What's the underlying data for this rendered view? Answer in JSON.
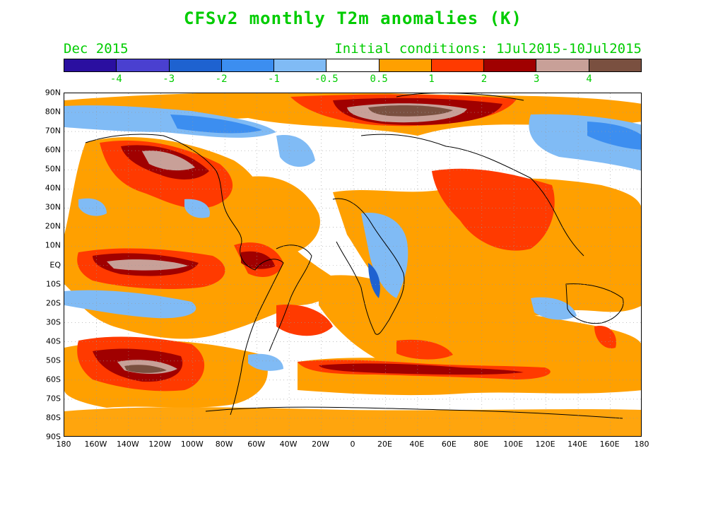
{
  "title": "CFSv2 monthly T2m anomalies (K)",
  "valid_month": "Dec 2015",
  "initial_conditions": "Initial conditions: 1Jul2015-10Jul2015",
  "colorbar": {
    "colors": [
      "#2a0fa0",
      "#4a40d0",
      "#1e62d0",
      "#3c8ef0",
      "#80bbf5",
      "#ffffff",
      "#ffa000",
      "#ff3a00",
      "#a00000",
      "#c8a098",
      "#7a5040"
    ],
    "labels": [
      "-4",
      "-3",
      "-2",
      "-1",
      "-0.5",
      "0.5",
      "1",
      "2",
      "3",
      "4"
    ]
  },
  "lat_labels": [
    "90N",
    "80N",
    "70N",
    "60N",
    "50N",
    "40N",
    "30N",
    "20N",
    "10N",
    "EQ",
    "10S",
    "20S",
    "30S",
    "40S",
    "50S",
    "60S",
    "70S",
    "80S",
    "90S"
  ],
  "lon_labels": [
    "180",
    "160W",
    "140W",
    "120W",
    "100W",
    "80W",
    "60W",
    "40W",
    "20W",
    "0",
    "20E",
    "40E",
    "60E",
    "80E",
    "100E",
    "120E",
    "140E",
    "160E",
    "180"
  ]
}
